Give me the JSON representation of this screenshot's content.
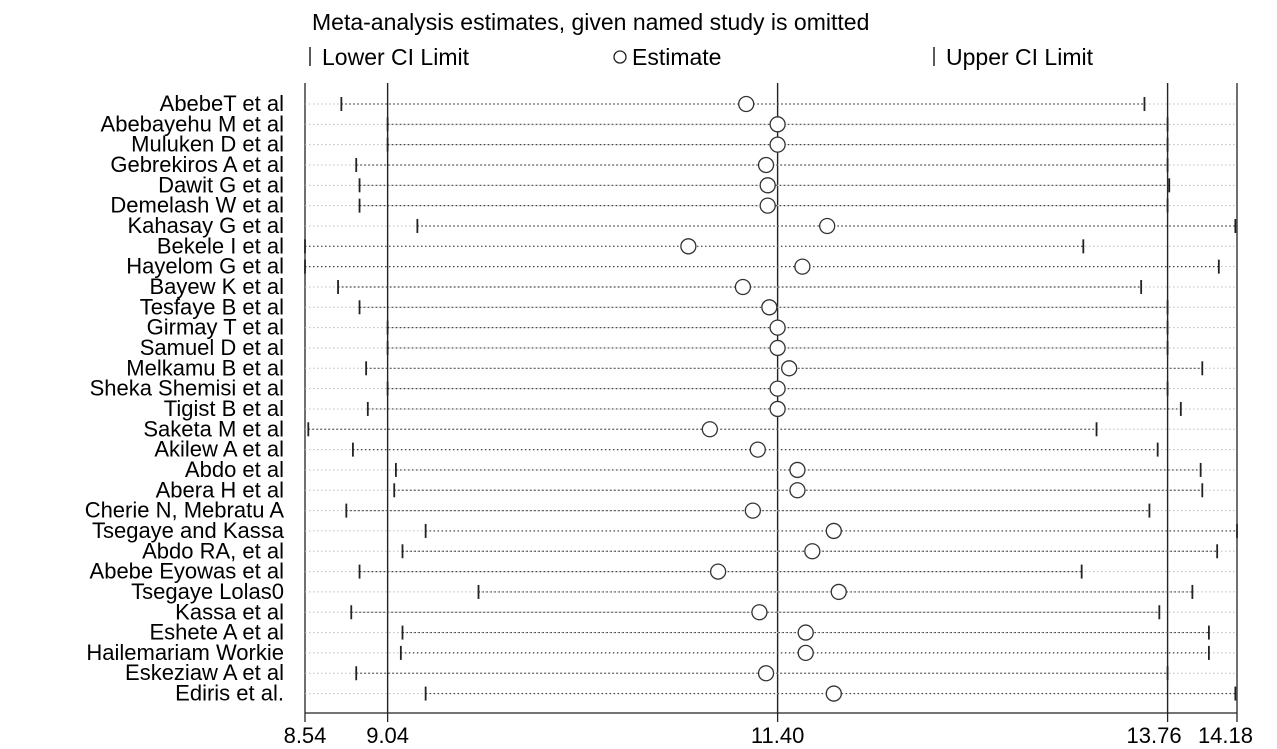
{
  "chart_data": {
    "type": "scatter",
    "title": "Meta-analysis estimates, given named study is omitted",
    "legend": {
      "placement": "top",
      "items": [
        {
          "key": "lower",
          "label": "Lower CI Limit",
          "marker": "bar"
        },
        {
          "key": "estimate",
          "label": "Estimate",
          "marker": "circle"
        },
        {
          "key": "upper",
          "label": "Upper CI Limit",
          "marker": "bar"
        }
      ]
    },
    "x_axis": {
      "range": [
        8.54,
        14.18
      ],
      "ticks": [
        8.54,
        9.04,
        11.4,
        13.76,
        14.18
      ],
      "tick_labels": [
        "8.54",
        "9.04",
        "11.40",
        "13.76",
        "14.18"
      ],
      "reference_lines": [
        9.04,
        11.4,
        13.76
      ]
    },
    "studies": [
      {
        "name": "AbebeT et al",
        "lower": 8.76,
        "estimate": 11.21,
        "upper": 13.62
      },
      {
        "name": "Abebayehu M et al",
        "lower": 9.04,
        "estimate": 11.4,
        "upper": 13.76
      },
      {
        "name": "Muluken D et al",
        "lower": 9.04,
        "estimate": 11.4,
        "upper": 13.76
      },
      {
        "name": "Gebrekiros A et al",
        "lower": 8.85,
        "estimate": 11.33,
        "upper": 13.76
      },
      {
        "name": "Dawit G et al",
        "lower": 8.87,
        "estimate": 11.34,
        "upper": 13.77
      },
      {
        "name": "Demelash W et al",
        "lower": 8.87,
        "estimate": 11.34,
        "upper": 13.76
      },
      {
        "name": "Kahasay G et al",
        "lower": 9.22,
        "estimate": 11.7,
        "upper": 14.17
      },
      {
        "name": "Bekele I et al",
        "lower": 8.54,
        "estimate": 10.86,
        "upper": 13.25
      },
      {
        "name": "Hayelom G et al",
        "lower": 8.54,
        "estimate": 11.55,
        "upper": 14.07
      },
      {
        "name": "Bayew K et al",
        "lower": 8.74,
        "estimate": 11.19,
        "upper": 13.6
      },
      {
        "name": "Tesfaye B et al",
        "lower": 8.87,
        "estimate": 11.35,
        "upper": 13.76
      },
      {
        "name": "Girmay T et al",
        "lower": 9.04,
        "estimate": 11.4,
        "upper": 13.76
      },
      {
        "name": "Samuel D et al",
        "lower": 9.04,
        "estimate": 11.4,
        "upper": 13.76
      },
      {
        "name": "Melkamu B et al",
        "lower": 8.91,
        "estimate": 11.47,
        "upper": 13.97
      },
      {
        "name": "Sheka Shemisi et al",
        "lower": 9.04,
        "estimate": 11.4,
        "upper": 13.76
      },
      {
        "name": "Tigist B et al",
        "lower": 8.92,
        "estimate": 11.4,
        "upper": 13.84
      },
      {
        "name": "Saketa M et al",
        "lower": 8.56,
        "estimate": 10.99,
        "upper": 13.33
      },
      {
        "name": "Akilew A et al",
        "lower": 8.83,
        "estimate": 11.28,
        "upper": 13.7
      },
      {
        "name": "Abdo et al",
        "lower": 9.09,
        "estimate": 11.52,
        "upper": 13.96
      },
      {
        "name": "Abera H et al",
        "lower": 9.08,
        "estimate": 11.52,
        "upper": 13.97
      },
      {
        "name": "Cherie N, Mebratu A",
        "lower": 8.79,
        "estimate": 11.25,
        "upper": 13.65
      },
      {
        "name": "Tsegaye and Kassa",
        "lower": 9.27,
        "estimate": 11.74,
        "upper": 14.18
      },
      {
        "name": "Abdo RA, et al",
        "lower": 9.13,
        "estimate": 11.61,
        "upper": 14.06
      },
      {
        "name": "Abebe Eyowas et al",
        "lower": 8.87,
        "estimate": 11.04,
        "upper": 13.24
      },
      {
        "name": "Tsegaye Lolas0",
        "lower": 9.59,
        "estimate": 11.77,
        "upper": 13.91
      },
      {
        "name": "Kassa et al",
        "lower": 8.82,
        "estimate": 11.29,
        "upper": 13.71
      },
      {
        "name": "Eshete A et al",
        "lower": 9.13,
        "estimate": 11.57,
        "upper": 14.01
      },
      {
        "name": "Hailemariam Workie",
        "lower": 9.12,
        "estimate": 11.57,
        "upper": 14.01
      },
      {
        "name": "Eskeziaw A et al",
        "lower": 8.85,
        "estimate": 11.33,
        "upper": 13.76
      },
      {
        "name": "Ediris et al.",
        "lower": 9.27,
        "estimate": 11.74,
        "upper": 14.17
      }
    ]
  }
}
